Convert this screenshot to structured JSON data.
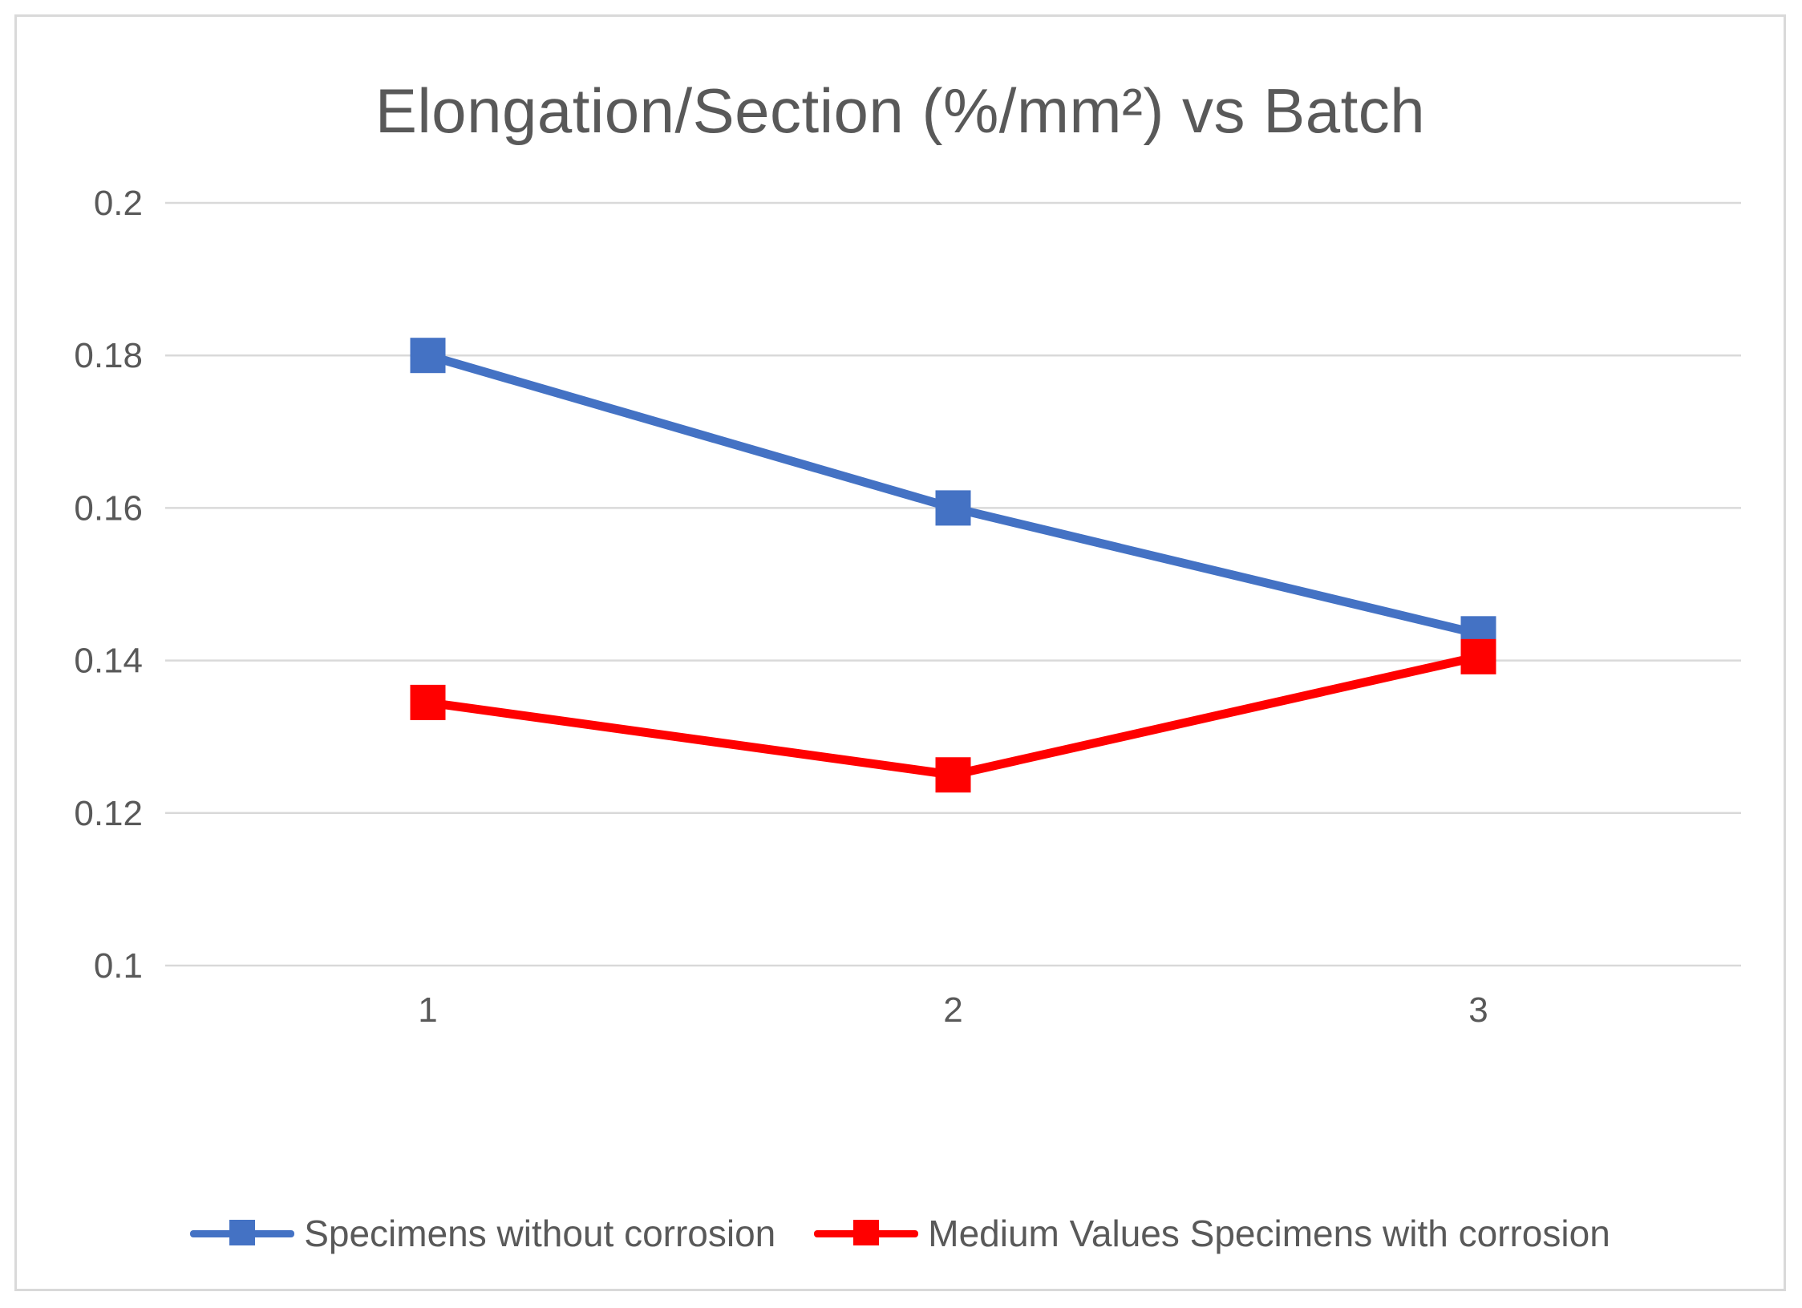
{
  "chart_data": {
    "type": "line",
    "title": "Elongation/Section (%/mm²) vs Batch",
    "categories": [
      "1",
      "2",
      "3"
    ],
    "series": [
      {
        "name": "Specimens without corrosion",
        "values": [
          0.18,
          0.16,
          0.1435
        ],
        "color": "#4472c4"
      },
      {
        "name": "Medium Values Specimens with corrosion",
        "values": [
          0.1345,
          0.125,
          0.1405
        ],
        "color": "#ff0000"
      }
    ],
    "y_ticks": [
      "0.2",
      "0.18",
      "0.16",
      "0.14",
      "0.12",
      "0.1"
    ],
    "ylim": [
      0.1,
      0.2
    ],
    "xlabel": "",
    "ylabel": "",
    "grid": true,
    "legend_position": "bottom"
  }
}
